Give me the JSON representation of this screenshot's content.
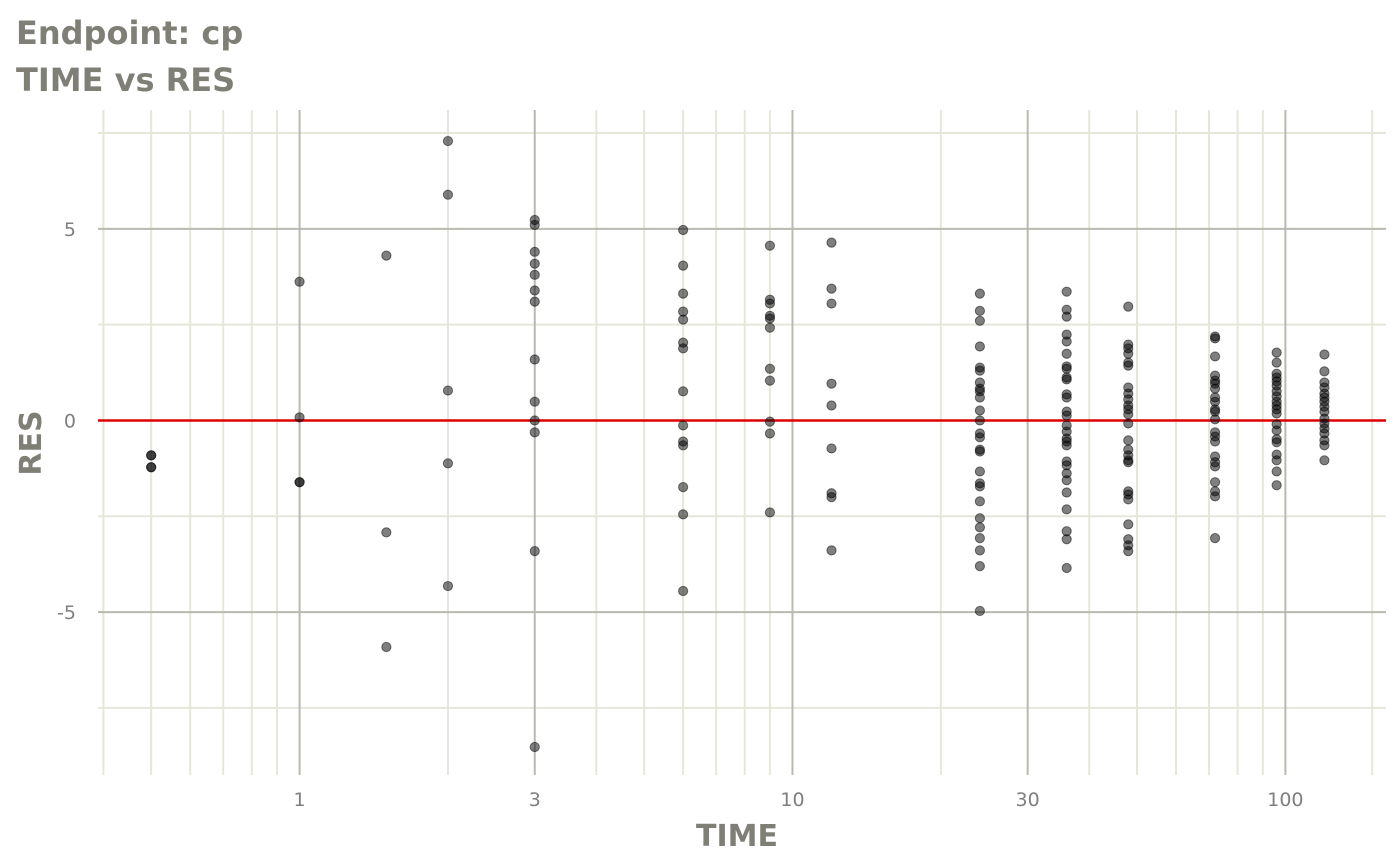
{
  "chart_data": {
    "type": "scatter",
    "title": "Endpoint:  cp",
    "subtitle": "TIME vs RES",
    "xlabel": "TIME",
    "ylabel": "RES",
    "x_scale": "log10",
    "xlim": [
      0.39,
      160
    ],
    "ylim": [
      -9.25,
      8.1
    ],
    "x_ticks": [
      1,
      3,
      10,
      30,
      100
    ],
    "x_tick_labels": [
      "1",
      "3",
      "10",
      "30",
      "100"
    ],
    "x_minor_grid": [
      0.4,
      0.5,
      0.6,
      0.7,
      0.8,
      0.9,
      2,
      4,
      5,
      6,
      7,
      8,
      9,
      20,
      40,
      50,
      60,
      70,
      80,
      90,
      150
    ],
    "y_ticks": [
      5,
      0,
      -5
    ],
    "y_tick_labels": [
      "5",
      "0",
      "-5"
    ],
    "y_minor_grid": [
      7.5,
      2.5,
      -2.5,
      -7.5
    ],
    "grid": true,
    "reference_line": {
      "y": 0,
      "color": "#dd0000"
    },
    "colors": {
      "points": "#000000",
      "major_grid": "#b9b9b1",
      "minor_grid": "#e6e6da",
      "title": "#7f7f77"
    },
    "point_alpha": 0.5,
    "points": [
      {
        "time": 0.5,
        "res": [
          -0.91,
          -0.91,
          -1.22,
          -1.22
        ]
      },
      {
        "time": 1,
        "res": [
          3.62,
          0.08,
          -1.61,
          -1.61
        ]
      },
      {
        "time": 1.5,
        "res": [
          4.3,
          -2.92,
          -5.91
        ]
      },
      {
        "time": 2,
        "res": [
          7.29,
          5.89,
          0.78,
          -1.12,
          -4.32
        ]
      },
      {
        "time": 3,
        "res": [
          5.23,
          5.1,
          4.4,
          4.09,
          3.8,
          3.39,
          3.1,
          1.59,
          0.49,
          0,
          -0.31,
          -3.41,
          -8.52
        ]
      },
      {
        "time": 6,
        "res": [
          4.97,
          4.04,
          3.31,
          2.84,
          2.63,
          2.03,
          1.88,
          0.76,
          -0.13,
          -0.55,
          -0.65,
          -1.74,
          -2.45,
          -4.45
        ]
      },
      {
        "time": 9,
        "res": [
          4.56,
          3.15,
          3.05,
          2.73,
          2.66,
          2.42,
          1.35,
          1.04,
          -0.03,
          -0.34,
          -2.4
        ]
      },
      {
        "time": 12,
        "res": [
          4.64,
          3.44,
          3.05,
          0.96,
          0.39,
          -0.73,
          -1.9,
          -2.0,
          -3.39
        ]
      },
      {
        "time": 24,
        "res": [
          3.31,
          2.86,
          2.6,
          1.93,
          1.38,
          1.3,
          0.99,
          0.83,
          0.76,
          0.6,
          0.26,
          0,
          -0.34,
          -0.44,
          -0.76,
          -0.81,
          -1.33,
          -1.64,
          -1.72,
          -2.11,
          -2.55,
          -2.79,
          -3.07,
          -3.39,
          -3.8,
          -4.97
        ]
      },
      {
        "time": 36,
        "res": [
          3.36,
          2.89,
          2.71,
          2.24,
          2.06,
          1.74,
          1.41,
          1.35,
          1.12,
          1.07,
          0.68,
          0.6,
          0.23,
          0.13,
          -0.13,
          -0.29,
          -0.47,
          -0.55,
          -0.65,
          -1.07,
          -1.17,
          -1.38,
          -1.56,
          -1.88,
          -2.32,
          -2.89,
          -3.1,
          -3.85
        ]
      },
      {
        "time": 48,
        "res": [
          2.97,
          1.98,
          1.88,
          1.74,
          1.51,
          1.43,
          0.86,
          0.7,
          0.55,
          0.39,
          0.29,
          0.16,
          -0.08,
          -0.52,
          -0.76,
          -0.91,
          -1.04,
          -1.09,
          -1.85,
          -1.93,
          -2.06,
          -2.71,
          -3.1,
          -3.26,
          -3.41
        ]
      },
      {
        "time": 72,
        "res": [
          2.19,
          2.14,
          1.67,
          1.17,
          1.04,
          0.96,
          0.83,
          0.6,
          0.49,
          0.29,
          0.23,
          0.03,
          -0.31,
          -0.42,
          -0.55,
          -0.94,
          -1.09,
          -1.2,
          -1.61,
          -1.85,
          -1.98,
          -3.07
        ]
      },
      {
        "time": 96,
        "res": [
          1.77,
          1.51,
          1.22,
          1.12,
          1.02,
          0.91,
          0.76,
          0.63,
          0.49,
          0.39,
          0.29,
          0.18,
          -0.1,
          -0.26,
          -0.49,
          -0.57,
          -0.89,
          -1.04,
          -1.33,
          -1.69
        ]
      },
      {
        "time": 120,
        "res": [
          1.72,
          1.28,
          0.99,
          0.86,
          0.7,
          0.6,
          0.49,
          0.36,
          0.23,
          0.05,
          -0.08,
          -0.21,
          -0.34,
          -0.52,
          -0.65,
          -1.04
        ]
      }
    ]
  }
}
